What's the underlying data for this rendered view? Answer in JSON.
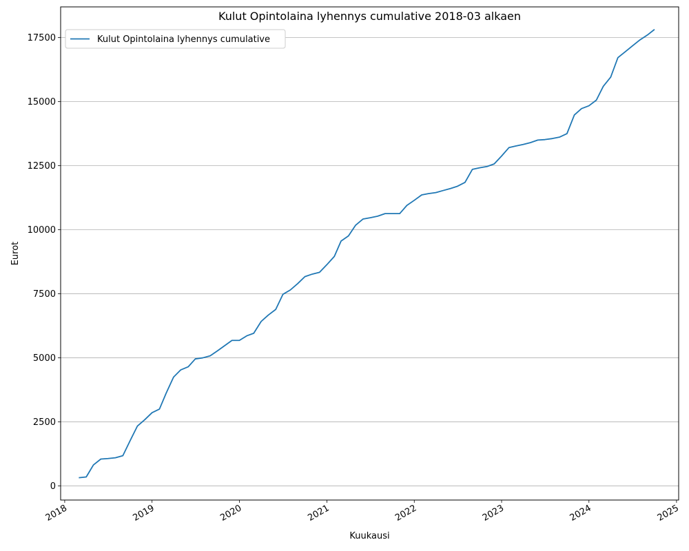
{
  "chart_data": {
    "type": "line",
    "title": "Kulut Opintolaina lyhennys cumulative 2018-03 alkaen",
    "xlabel": "Kuukausi",
    "ylabel": "Eurot",
    "xlim": [
      "2017-12-15",
      "2025-01-10"
    ],
    "ylim": [
      -550,
      18700
    ],
    "x_ticks": [
      "2018",
      "2019",
      "2020",
      "2021",
      "2022",
      "2023",
      "2024",
      "2025"
    ],
    "y_ticks": [
      0,
      2500,
      5000,
      7500,
      10000,
      12500,
      15000,
      17500
    ],
    "y_tick_labels": [
      "0",
      "2500",
      "5000",
      "7500",
      "10000",
      "12500",
      "15000",
      "17500"
    ],
    "grid": "y",
    "legend": "top-left",
    "line_color": "#1f77b4",
    "series": [
      {
        "name": "Kulut Opintolaina lyhennys cumulative",
        "x": [
          "2018-03",
          "2018-04",
          "2018-05",
          "2018-06",
          "2018-07",
          "2018-08",
          "2018-09",
          "2018-10",
          "2018-11",
          "2018-12",
          "2019-01",
          "2019-02",
          "2019-03",
          "2019-04",
          "2019-05",
          "2019-06",
          "2019-07",
          "2019-08",
          "2019-09",
          "2019-10",
          "2019-11",
          "2019-12",
          "2020-01",
          "2020-02",
          "2020-03",
          "2020-04",
          "2020-05",
          "2020-06",
          "2020-07",
          "2020-08",
          "2020-09",
          "2020-10",
          "2020-11",
          "2020-12",
          "2021-01",
          "2021-02",
          "2021-03",
          "2021-04",
          "2021-05",
          "2021-06",
          "2021-07",
          "2021-08",
          "2021-09",
          "2021-10",
          "2021-11",
          "2021-12",
          "2022-01",
          "2022-02",
          "2022-03",
          "2022-04",
          "2022-05",
          "2022-06",
          "2022-07",
          "2022-08",
          "2022-09",
          "2022-10",
          "2022-11",
          "2022-12",
          "2023-01",
          "2023-02",
          "2023-03",
          "2023-04",
          "2023-05",
          "2023-06",
          "2023-07",
          "2023-08",
          "2023-09",
          "2023-10",
          "2023-11",
          "2023-12",
          "2024-01",
          "2024-02",
          "2024-03",
          "2024-04",
          "2024-05",
          "2024-06",
          "2024-07",
          "2024-08",
          "2024-09",
          "2024-10"
        ],
        "values": [
          320,
          350,
          820,
          1050,
          1070,
          1100,
          1180,
          1760,
          2340,
          2580,
          2860,
          3000,
          3620,
          4250,
          4530,
          4650,
          4960,
          5000,
          5080,
          5270,
          5480,
          5680,
          5680,
          5860,
          5960,
          6420,
          6670,
          6890,
          7480,
          7650,
          7900,
          8170,
          8270,
          8340,
          8640,
          8960,
          9560,
          9760,
          10180,
          10420,
          10470,
          10530,
          10630,
          10630,
          10630,
          10950,
          11150,
          11360,
          11410,
          11450,
          11530,
          11610,
          11700,
          11850,
          12360,
          12420,
          12470,
          12570,
          12880,
          13210,
          13270,
          13330,
          13400,
          13500,
          13520,
          13560,
          13620,
          13750,
          14480,
          14730,
          14840,
          15060,
          15600,
          15960,
          16720,
          16950,
          17180,
          17410,
          17600,
          17820
        ]
      }
    ]
  }
}
